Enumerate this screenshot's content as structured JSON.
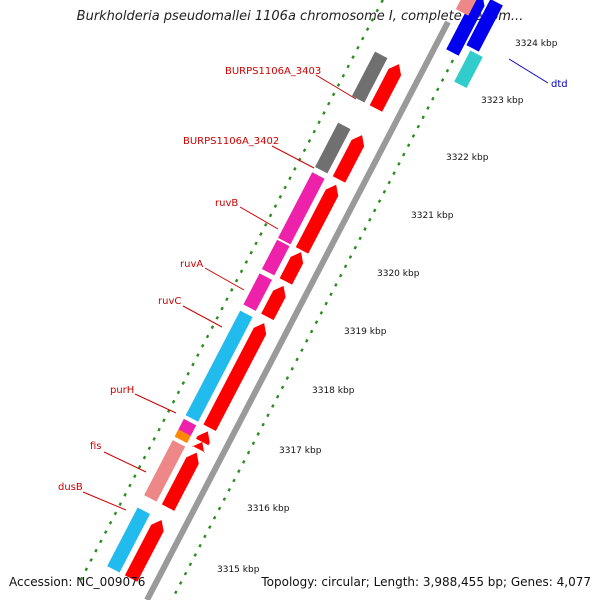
{
  "title": "Burkholderia pseudomallei 1106a chromosome I, complete genom...",
  "footer": {
    "accession": "Accession: NC_009076",
    "summary": "Topology: circular; Length: 3,988,455 bp; Genes: 4,077"
  },
  "colors": {
    "backbone": "#9a9a9a",
    "tick": "#2e8b22",
    "label_red": "#cc0000",
    "label_blue": "#0000cc",
    "cds_red": "#ff0000",
    "gray_gene": "#707070",
    "magenta_gene": "#ee22aa",
    "cyan_gene": "#22bbee",
    "salmon_gene": "#ee8888",
    "orange_gene": "#ff8800",
    "blue_gene": "#0000ee",
    "teal_gene": "#33cccc"
  },
  "scale_labels": [
    {
      "label": "3315 kbp"
    },
    {
      "label": "3316 kbp"
    },
    {
      "label": "3317 kbp"
    },
    {
      "label": "3318 kbp"
    },
    {
      "label": "3319 kbp"
    },
    {
      "label": "3320 kbp"
    },
    {
      "label": "3321 kbp"
    },
    {
      "label": "3322 kbp"
    },
    {
      "label": "3323 kbp"
    },
    {
      "label": "3324 kbp"
    }
  ],
  "gene_labels": [
    {
      "name": "BURPS1106A_3403",
      "color": "red"
    },
    {
      "name": "BURPS1106A_3402",
      "color": "red"
    },
    {
      "name": "ruvB",
      "color": "red"
    },
    {
      "name": "ruvA",
      "color": "red"
    },
    {
      "name": "ruvC",
      "color": "red"
    },
    {
      "name": "purH",
      "color": "red"
    },
    {
      "name": "fis",
      "color": "red"
    },
    {
      "name": "dusB",
      "color": "red"
    },
    {
      "name": "dtd",
      "color": "blue"
    }
  ]
}
